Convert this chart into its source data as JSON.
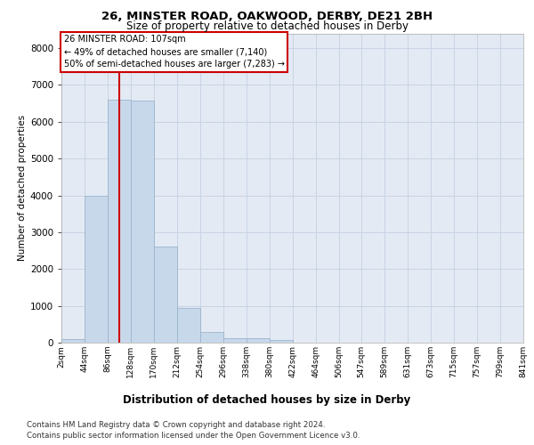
{
  "title1": "26, MINSTER ROAD, OAKWOOD, DERBY, DE21 2BH",
  "title2": "Size of property relative to detached houses in Derby",
  "xlabel": "Distribution of detached houses by size in Derby",
  "ylabel": "Number of detached properties",
  "footnote1": "Contains HM Land Registry data © Crown copyright and database right 2024.",
  "footnote2": "Contains public sector information licensed under the Open Government Licence v3.0.",
  "annotation_line1": "26 MINSTER ROAD: 107sqm",
  "annotation_line2": "← 49% of detached houses are smaller (7,140)",
  "annotation_line3": "50% of semi-detached houses are larger (7,283) →",
  "bar_color": "#c8d8eb",
  "bar_edge_color": "#9ab4cc",
  "red_line_color": "#cc0000",
  "annotation_box_color": "#ffffff",
  "annotation_box_edge": "#cc0000",
  "grid_color": "#c8d4e4",
  "background_color": "#e4eaf4",
  "bin_edges": [
    2,
    44,
    86,
    128,
    170,
    212,
    254,
    296,
    338,
    380,
    422,
    464,
    506,
    547,
    589,
    631,
    673,
    715,
    757,
    799,
    841
  ],
  "bin_labels": [
    "2sqm",
    "44sqm",
    "86sqm",
    "128sqm",
    "170sqm",
    "212sqm",
    "254sqm",
    "296sqm",
    "338sqm",
    "380sqm",
    "422sqm",
    "464sqm",
    "506sqm",
    "547sqm",
    "589sqm",
    "631sqm",
    "673sqm",
    "715sqm",
    "757sqm",
    "799sqm",
    "841sqm"
  ],
  "bar_heights": [
    100,
    3980,
    6600,
    6580,
    2600,
    950,
    300,
    130,
    110,
    80,
    0,
    0,
    0,
    0,
    0,
    0,
    0,
    0,
    0,
    0
  ],
  "ylim": [
    0,
    8400
  ],
  "yticks": [
    0,
    1000,
    2000,
    3000,
    4000,
    5000,
    6000,
    7000,
    8000
  ],
  "red_line_x": 107,
  "property_size": 107
}
